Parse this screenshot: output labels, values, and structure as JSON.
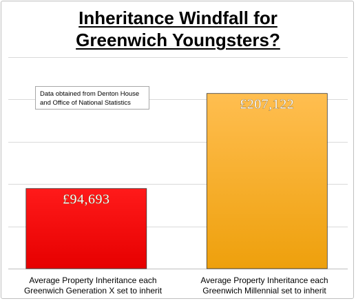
{
  "chart_data": {
    "type": "bar",
    "title_lines": [
      "Inheritance Windfall for",
      "Greenwich Youngsters?"
    ],
    "categories": [
      [
        "Average Property Inheritance each",
        "Greenwich Generation X set to inherit"
      ],
      [
        "Average Property Inheritance each",
        "Greenwich Millennial set to inherit"
      ]
    ],
    "values": [
      94693,
      207122
    ],
    "data_labels": [
      "£94,693",
      "£207,122"
    ],
    "bar_colors": [
      "#ff0000",
      "#f2a32b"
    ],
    "ylim": [
      0,
      250000
    ],
    "gridlines": true,
    "legend": "none",
    "annotation_lines": [
      "Data obtained from Denton House",
      "and Office of National Statistics"
    ]
  }
}
